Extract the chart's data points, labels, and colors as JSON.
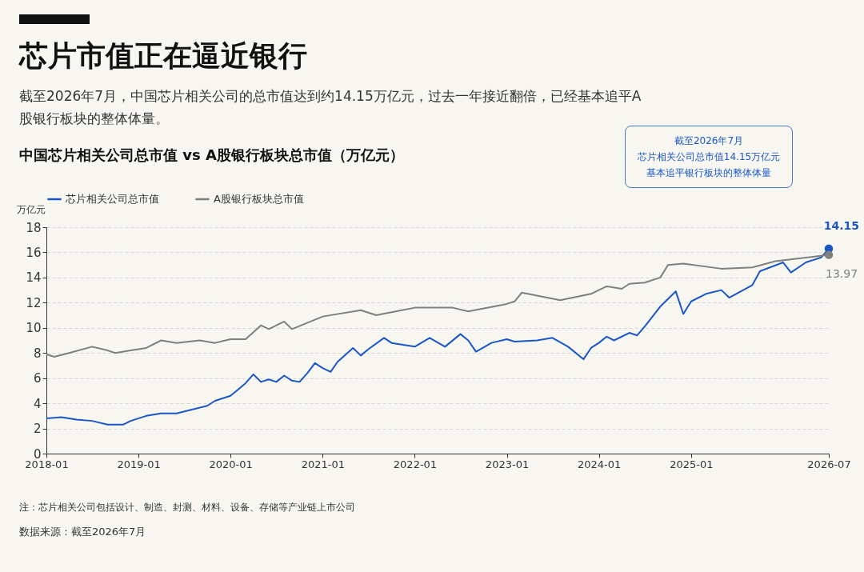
{
  "chart_data": {
    "type": "line",
    "title": "芯片市值正在逼近银行",
    "subtitle": "截至2026年7月，中国芯片相关公司的总市值达到约14.15万亿元，过去一年接近翻倍，已经基本追平A股银行板块的整体体量。",
    "ylabel": "万亿元",
    "annotations": [
      "中国芯片相关公司总市值 vs A股银行板块总市值（万亿元）",
      "截至2026年7月",
      "芯片相关公司总市值14.15万亿元",
      "基本追平银行板块的整体体量",
      "14.15",
      "13.97",
      "注：芯片相关公司包括设计、制造、封测、材料、设备、存储等产业链上市公司",
      "数据来源：截至2026年7月"
    ],
    "x": [
      "2018-01",
      "2018-03",
      "2018-05",
      "2018-07",
      "2018-09",
      "2018-11",
      "2018-12",
      "2019-02",
      "2019-04",
      "2019-06",
      "2019-08",
      "2019-10",
      "2019-11",
      "2020-01",
      "2020-02",
      "2020-03",
      "2020-04",
      "2020-05",
      "2020-06",
      "2020-07",
      "2020-08",
      "2020-09",
      "2020-10",
      "2020-11",
      "2020-12",
      "2021-01",
      "2021-02",
      "2021-03",
      "2021-05",
      "2021-06",
      "2021-07",
      "2021-09",
      "2021-10",
      "2021-12",
      "2022-01",
      "2022-03",
      "2022-05",
      "2022-07",
      "2022-08",
      "2022-09",
      "2022-11",
      "2023-01",
      "2023-02",
      "2023-05",
      "2023-07",
      "2023-09",
      "2023-11",
      "2023-12",
      "2024-01",
      "2024-02",
      "2024-03",
      "2024-05",
      "2024-06",
      "2024-07",
      "2024-08",
      "2024-09",
      "2024-11",
      "2024-12",
      "2025-01",
      "2025-03",
      "2025-05",
      "2025-06",
      "2025-09",
      "2025-10",
      "2026-01",
      "2026-02",
      "2026-04",
      "2026-06",
      "2026-07"
    ],
    "series": [
      {
        "name": "芯片相关公司总市值",
        "color": "#1a56c8",
        "values": [
          2.8,
          2.9,
          2.7,
          2.6,
          2.3,
          2.3,
          2.6,
          3.0,
          3.2,
          3.2,
          3.5,
          3.8,
          4.2,
          4.6,
          5.1,
          5.6,
          6.3,
          5.7,
          5.9,
          5.7,
          6.2,
          5.8,
          5.7,
          6.4,
          7.2,
          6.8,
          6.5,
          7.3,
          8.4,
          7.8,
          8.3,
          9.2,
          8.8,
          8.6,
          8.5,
          9.2,
          8.5,
          9.5,
          9.0,
          8.1,
          8.8,
          9.1,
          8.9,
          9.0,
          9.2,
          8.5,
          7.5,
          8.4,
          8.8,
          9.3,
          9.0,
          9.6,
          9.4,
          10.1,
          10.9,
          11.7,
          12.9,
          11.1,
          12.1,
          12.7,
          13.0,
          12.4,
          13.4,
          14.5,
          15.2,
          14.4,
          15.2,
          15.6,
          16.3
        ]
      },
      {
        "name": "A股银行板块总市值",
        "color": "#7f7f7f",
        "x": [
          "2018-01",
          "2018-02",
          "2018-04",
          "2018-07",
          "2018-09",
          "2018-10",
          "2018-12",
          "2019-02",
          "2019-04",
          "2019-06",
          "2019-09",
          "2019-11",
          "2020-01",
          "2020-03",
          "2020-05",
          "2020-06",
          "2020-08",
          "2020-09",
          "2021-01",
          "2021-06",
          "2021-08",
          "2022-01",
          "2022-06",
          "2022-08",
          "2023-01",
          "2023-02",
          "2023-03",
          "2023-08",
          "2023-12",
          "2024-02",
          "2024-04",
          "2024-05",
          "2024-07",
          "2024-09",
          "2024-10",
          "2024-12",
          "2025-05",
          "2025-09",
          "2025-12",
          "2026-07"
        ],
        "values": [
          7.9,
          7.7,
          8.0,
          8.5,
          8.2,
          8.0,
          8.2,
          8.4,
          9.0,
          8.8,
          9.0,
          8.8,
          9.1,
          9.1,
          10.2,
          9.9,
          10.5,
          9.9,
          10.9,
          11.4,
          11.0,
          11.6,
          11.6,
          11.3,
          11.9,
          12.1,
          12.8,
          12.2,
          12.7,
          13.3,
          13.1,
          13.5,
          13.6,
          14.0,
          15.0,
          15.1,
          14.7,
          14.8,
          15.3,
          15.8
        ]
      }
    ],
    "xlim": [
      "2018-01",
      "2026-07"
    ],
    "xticks": [
      "2018-01",
      "2019-01",
      "2020-01",
      "2021-01",
      "2022-01",
      "2023-01",
      "2024-01",
      "2025-01",
      "2026-07"
    ],
    "ylim": [
      0,
      18
    ],
    "yticks": [
      0,
      2,
      4,
      6,
      8,
      10,
      12,
      14,
      16,
      18
    ],
    "grid": "y",
    "legend": "top left",
    "line_style": "solid"
  }
}
